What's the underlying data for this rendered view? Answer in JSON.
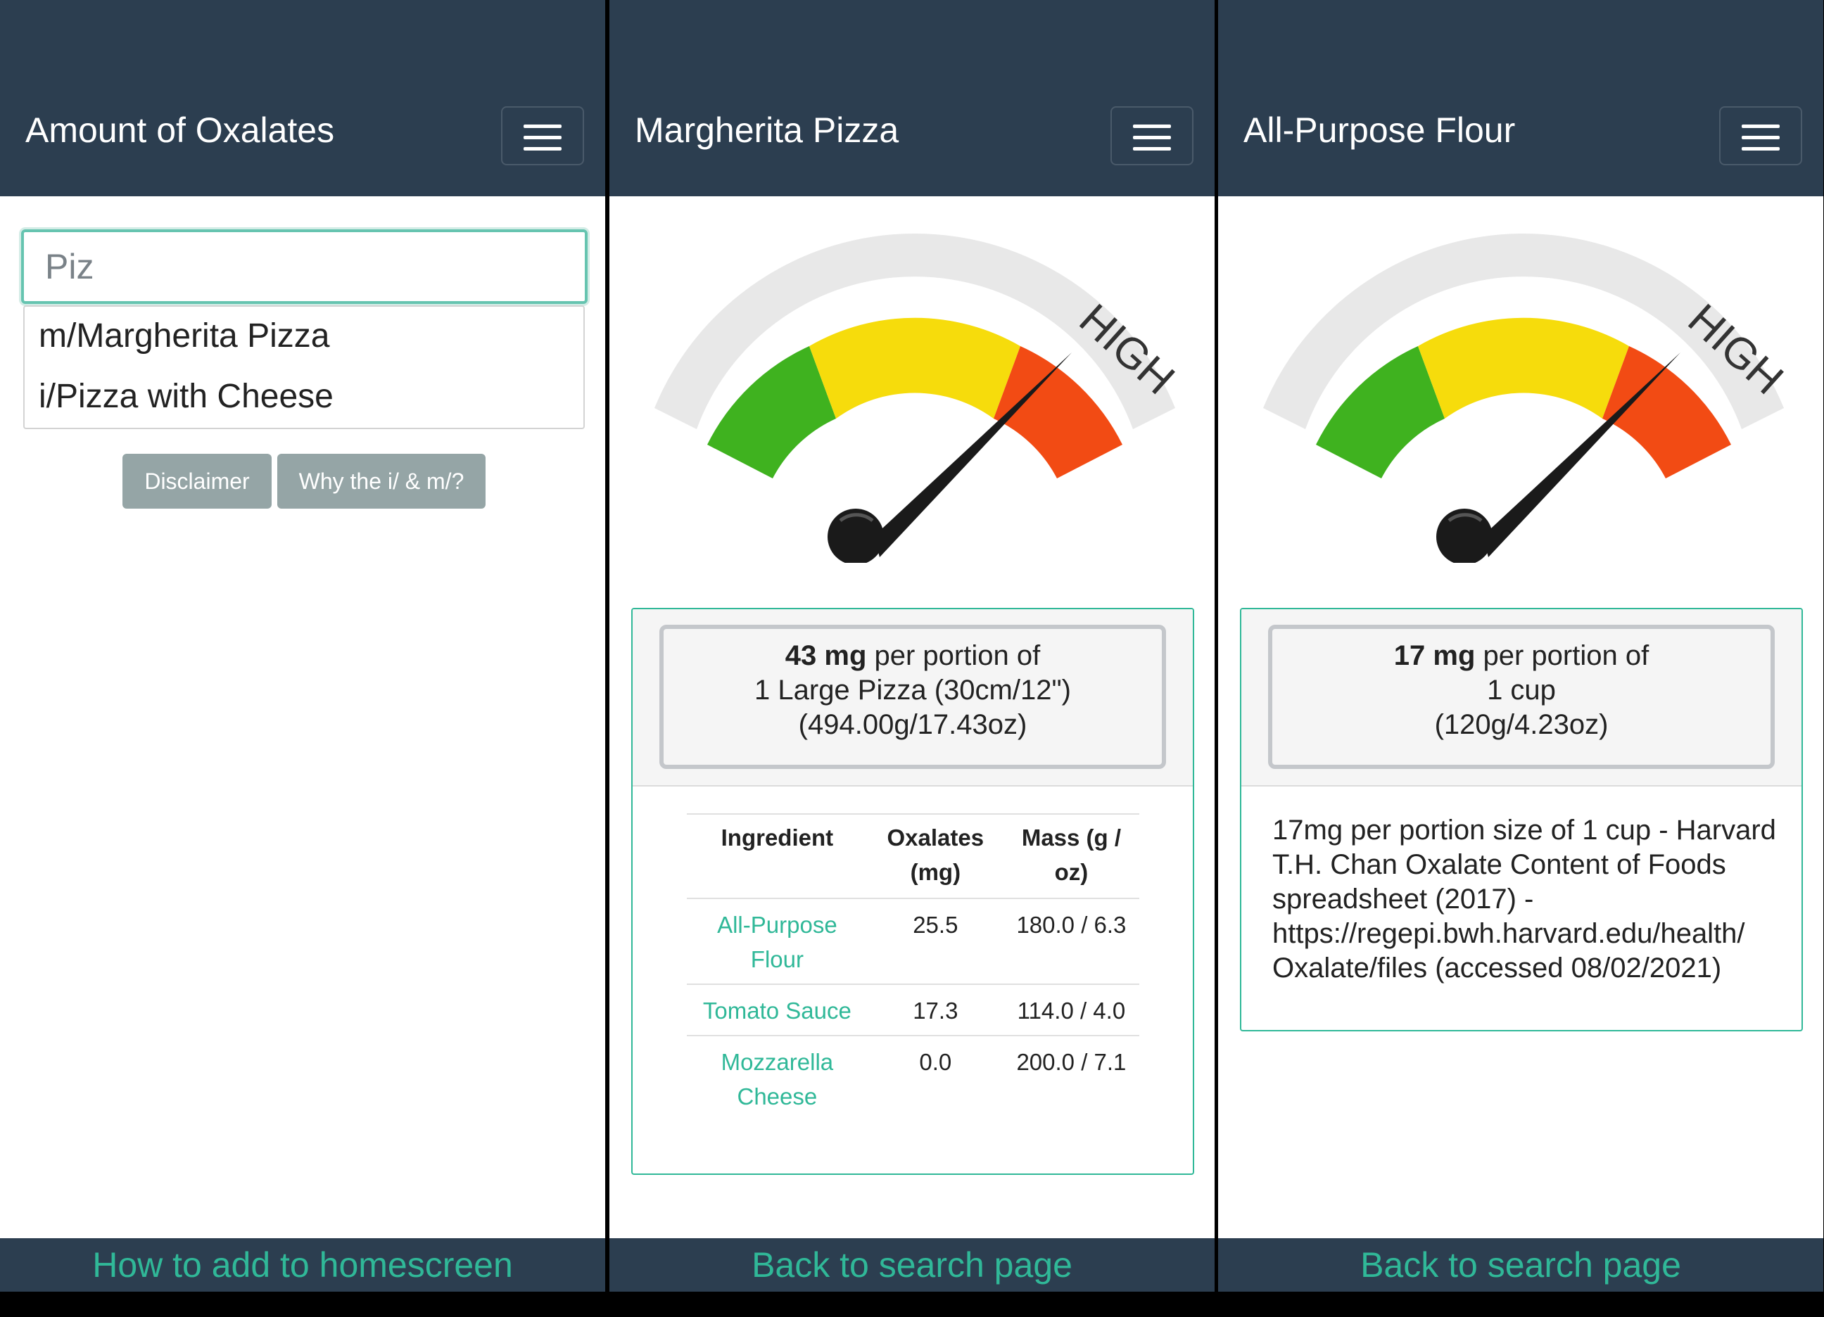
{
  "colors": {
    "navbar": "#2c3e50",
    "accent": "#30b898",
    "button_grey": "#95a5a6",
    "gauge_green": "#3fb21f",
    "gauge_yellow": "#f6dc0c",
    "gauge_red": "#f24b14"
  },
  "search_screen": {
    "title": "Amount of Oxalates",
    "menu_icon": "hamburger-menu-icon",
    "search_value": "Piz",
    "suggestions": [
      "m/Margherita Pizza",
      "i/Pizza with Cheese"
    ],
    "buttons": {
      "disclaimer": "Disclaimer",
      "why": "Why the i/ & m/?"
    },
    "footer_link": "How to add to homescreen"
  },
  "pizza_screen": {
    "title": "Margherita Pizza",
    "menu_icon": "hamburger-menu-icon",
    "gauge": {
      "label": "HIGH",
      "needle_level": 0.8
    },
    "summary": {
      "amount": "43 mg",
      "line1_rest": " per portion of",
      "line2": "1 Large Pizza (30cm/12\")",
      "line3": "(494.00g/17.43oz)"
    },
    "table": {
      "headers": [
        "Ingredient",
        "Oxalates (mg)",
        "Mass (g / oz)"
      ],
      "rows": [
        [
          "All-Purpose Flour",
          "25.5",
          "180.0 / 6.3"
        ],
        [
          "Tomato Sauce",
          "17.3",
          "114.0 / 4.0"
        ],
        [
          "Mozzarella Cheese",
          "0.0",
          "200.0 / 7.1"
        ]
      ]
    },
    "footer_link": "Back to search page"
  },
  "flour_screen": {
    "title": "All-Purpose Flour",
    "menu_icon": "hamburger-menu-icon",
    "gauge": {
      "label": "HIGH",
      "needle_level": 0.8
    },
    "summary": {
      "amount": "17 mg",
      "line1_rest": " per portion of",
      "line2": "1 cup",
      "line3": "(120g/4.23oz)"
    },
    "source": "17mg per portion size of 1 cup - Harvard T.H. Chan Oxalate Content of Foods spreadsheet (2017) - https://regepi.bwh.harvard.edu/health/ Oxalate/files (accessed 08/02/2021)",
    "footer_link": "Back to search page"
  }
}
